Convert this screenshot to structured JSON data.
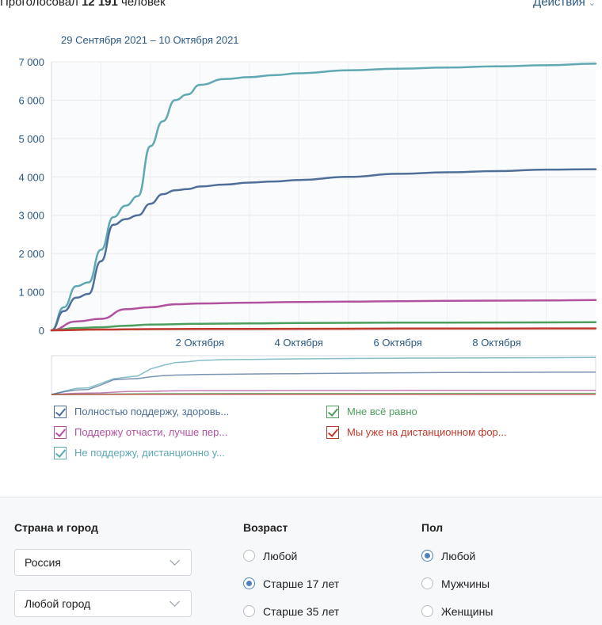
{
  "header": {
    "voted_prefix": "Проголосовал",
    "voted_count": "12 191",
    "voted_suffix": "человек",
    "actions_label": "Действия"
  },
  "date_range": "29 Сентября 2021 – 10 Октября 2021",
  "chart_data": {
    "type": "line",
    "x_unit": "date",
    "x_start": "2021-09-29",
    "x_end": "2021-10-10",
    "x_ticks": [
      "2 Октября",
      "4 Октября",
      "6 Октября",
      "8 Октября"
    ],
    "y_ticks": [
      "0",
      "1 000",
      "2 000",
      "3 000",
      "4 000",
      "5 000",
      "6 000",
      "7 000"
    ],
    "ylim": [
      0,
      7000
    ],
    "grid": true,
    "legend_position": "bottom",
    "series": [
      {
        "name": "Не поддержу, дистанционно у...",
        "color": "#5fa8b4",
        "x": [
          "2021-09-29",
          "2021-09-29 06:00",
          "2021-09-29 12:00",
          "2021-09-29 18:00",
          "2021-09-30",
          "2021-09-30 06:00",
          "2021-09-30 12:00",
          "2021-09-30 18:00",
          "2021-10-01",
          "2021-10-01 06:00",
          "2021-10-01 12:00",
          "2021-10-01 18:00",
          "2021-10-02",
          "2021-10-02 12:00",
          "2021-10-03",
          "2021-10-03 12:00",
          "2021-10-04",
          "2021-10-05",
          "2021-10-06",
          "2021-10-07",
          "2021-10-08",
          "2021-10-09",
          "2021-10-10"
        ],
        "values": [
          0,
          600,
          1150,
          1250,
          2100,
          2950,
          3250,
          3500,
          4800,
          5450,
          6000,
          6150,
          6400,
          6550,
          6600,
          6650,
          6700,
          6780,
          6820,
          6850,
          6880,
          6910,
          6950
        ]
      },
      {
        "name": "Полностью поддержу, здоровь...",
        "color": "#4e6f99",
        "x": [
          "2021-09-29",
          "2021-09-29 06:00",
          "2021-09-29 12:00",
          "2021-09-29 18:00",
          "2021-09-30",
          "2021-09-30 06:00",
          "2021-09-30 12:00",
          "2021-09-30 18:00",
          "2021-10-01",
          "2021-10-01 06:00",
          "2021-10-01 12:00",
          "2021-10-01 18:00",
          "2021-10-02",
          "2021-10-02 12:00",
          "2021-10-03",
          "2021-10-03 12:00",
          "2021-10-04",
          "2021-10-05",
          "2021-10-06",
          "2021-10-07",
          "2021-10-08",
          "2021-10-09",
          "2021-10-10"
        ],
        "values": [
          0,
          500,
          850,
          950,
          1800,
          2750,
          2900,
          3000,
          3300,
          3550,
          3650,
          3680,
          3750,
          3800,
          3850,
          3880,
          3920,
          4000,
          4080,
          4120,
          4150,
          4190,
          4200
        ]
      },
      {
        "name": "Поддержу отчасти, лучше пер...",
        "color": "#b152a0",
        "x": [
          "2021-09-29",
          "2021-09-29 12:00",
          "2021-09-30",
          "2021-09-30 12:00",
          "2021-10-01",
          "2021-10-01 12:00",
          "2021-10-02",
          "2021-10-03",
          "2021-10-04",
          "2021-10-05",
          "2021-10-06",
          "2021-10-07",
          "2021-10-08",
          "2021-10-09",
          "2021-10-10"
        ],
        "values": [
          0,
          230,
          300,
          550,
          600,
          680,
          700,
          720,
          740,
          750,
          760,
          770,
          775,
          780,
          790
        ]
      },
      {
        "name": "Мне всё равно",
        "color": "#4c9e5d",
        "x": [
          "2021-09-29",
          "2021-09-29 12:00",
          "2021-09-30",
          "2021-09-30 12:00",
          "2021-10-01",
          "2021-10-02",
          "2021-10-03",
          "2021-10-04",
          "2021-10-06",
          "2021-10-08",
          "2021-10-10"
        ],
        "values": [
          0,
          60,
          80,
          120,
          150,
          170,
          180,
          190,
          200,
          205,
          210
        ]
      },
      {
        "name": "Мы уже на дистанционном фор...",
        "color": "#c0392b",
        "x": [
          "2021-09-29",
          "2021-09-30",
          "2021-10-01",
          "2021-10-02",
          "2021-10-04",
          "2021-10-06",
          "2021-10-08",
          "2021-10-10"
        ],
        "values": [
          0,
          20,
          30,
          35,
          40,
          45,
          48,
          50
        ]
      }
    ]
  },
  "legend": [
    {
      "label": "Полностью поддержу, здоровь...",
      "color": "#4e6f99"
    },
    {
      "label": "Мне всё равно",
      "color": "#4c9e5d"
    },
    {
      "label": "Поддержу отчасти, лучше пер...",
      "color": "#b152a0"
    },
    {
      "label": "Мы уже на дистанционном фор...",
      "color": "#c0392b"
    },
    {
      "label": "Не поддержу, дистанционно у...",
      "color": "#5fa8b4"
    }
  ],
  "filters": {
    "location": {
      "title": "Страна и город",
      "country": "Россия",
      "city": "Любой город"
    },
    "age": {
      "title": "Возраст",
      "options": [
        "Любой",
        "Старше 17 лет",
        "Старше 35 лет"
      ],
      "selected": "Старше 17 лет"
    },
    "sex": {
      "title": "Пол",
      "options": [
        "Любой",
        "Мужчины",
        "Женщины"
      ],
      "selected": "Любой"
    }
  },
  "colors": {
    "link": "#2a5885",
    "radio_accent": "#5181b8",
    "grid": "#e7e8ec"
  }
}
